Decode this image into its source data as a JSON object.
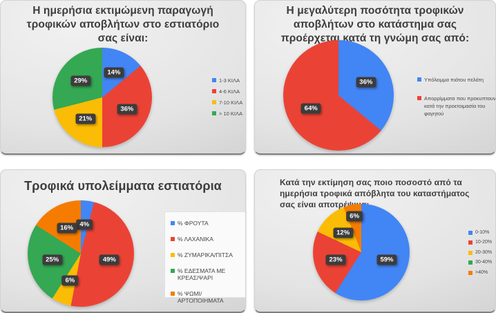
{
  "colors": {
    "blue": "#4285F4",
    "red": "#EA4335",
    "yellow": "#FBBC05",
    "green": "#34A853",
    "orange": "#F57C00",
    "label_bg": "#3c3c3c",
    "label_text": "#ffffff",
    "title_text": "#3d3d3d",
    "legend_text": "#464646"
  },
  "chart_data": [
    {
      "type": "pie",
      "title": "Η ημερήσια εκτιμώμενη παραγωγή τροφικών αποβλήτων στο εστιατόριο σας είναι:",
      "legend_position": "right",
      "slices": [
        {
          "label": "1-3 ΚΙΛΑ",
          "value": 14,
          "color": "blue",
          "data_label": "14%"
        },
        {
          "label": "4-6 ΚΙΛΑ",
          "value": 36,
          "color": "red",
          "data_label": "36%"
        },
        {
          "label": "7-10 ΚΙΛΑ",
          "value": 21,
          "color": "yellow",
          "data_label": "21%"
        },
        {
          "label": "> 10 ΚΙΛΑ",
          "value": 29,
          "color": "green",
          "data_label": "29%"
        }
      ]
    },
    {
      "type": "pie",
      "title": "Η μεγαλύτερη ποσότητα τροφικών αποβλήτων στο κατάστημα σας προέρχεται κατά τη γνώμη σας από:",
      "legend_position": "right",
      "slices": [
        {
          "label": "Υπόλειμμα πιάτου πελάτη",
          "value": 36,
          "color": "blue",
          "data_label": "36%"
        },
        {
          "label": "Απορρίμματα που προκυπτουν κατά την προετοιμασία του φαγητού",
          "value": 64,
          "color": "red",
          "data_label": "64%"
        }
      ]
    },
    {
      "type": "pie",
      "title": "Τροφικά υπολείμματα εστιατόρια",
      "legend_position": "right",
      "slices": [
        {
          "label": "% ΦΡΟΥΤΑ",
          "value": 4,
          "color": "blue",
          "data_label": "4%"
        },
        {
          "label": "% ΛΑΧΑΝΙΚΑ",
          "value": 49,
          "color": "red",
          "data_label": "49%"
        },
        {
          "label": "% ΖΥΜΑΡΙΚΑ/ΠΙΤΣΑ",
          "value": 6,
          "color": "yellow",
          "data_label": "6%"
        },
        {
          "label": "% ΕΔΕΣΜΑΤΑ ΜΕ ΚΡΕΑΣ/ΨΑΡΙ",
          "value": 25,
          "color": "green",
          "data_label": "25%"
        },
        {
          "label": "% ΨΩΜΙ/ΑΡΤΟΠΟΙΗΜΑΤΑ",
          "value": 16,
          "color": "orange",
          "data_label": "16%"
        }
      ]
    },
    {
      "type": "pie",
      "title": "Κατά την εκτίμηση σας ποιο ποσοστό από τα ημερήσια τροφικά απόβλητα του καταστήματος σας είναι αποτρέψιμα;",
      "legend_position": "right",
      "slices": [
        {
          "label": "0-10%",
          "value": 59,
          "color": "blue",
          "data_label": "59%"
        },
        {
          "label": "10-20%",
          "value": 23,
          "color": "red",
          "data_label": "23%"
        },
        {
          "label": "20-30%",
          "value": 12,
          "color": "yellow",
          "data_label": "12%"
        },
        {
          "label": "30-40%",
          "value": 0,
          "color": "green",
          "data_label": null
        },
        {
          "label": ">40%",
          "value": 6,
          "color": "orange",
          "data_label": "6%",
          "label_r": 0.75
        }
      ]
    }
  ]
}
